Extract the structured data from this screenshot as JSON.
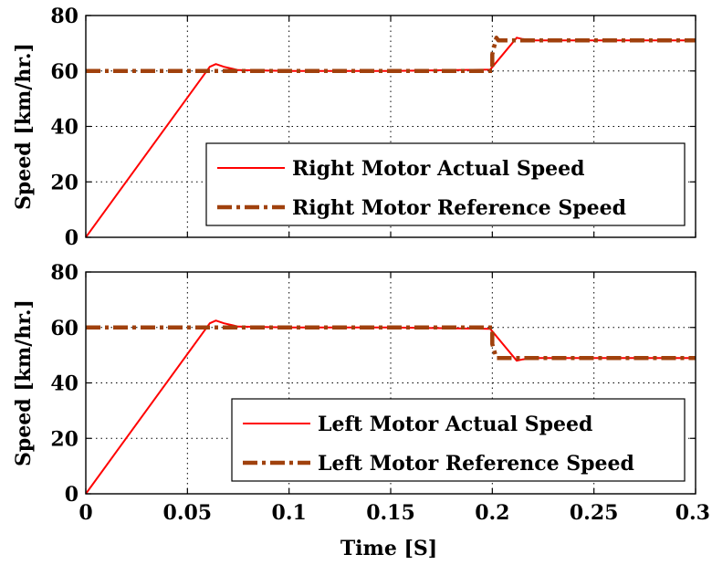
{
  "figure": {
    "xlabel": "Time [S]"
  },
  "colors": {
    "actual": "#ff0000",
    "reference": "#a0410d",
    "axis": "#000000",
    "grid": "#000000",
    "background": "#ffffff"
  },
  "chart_data": [
    {
      "type": "line",
      "xlabel": "",
      "ylabel": "Speed [km/hr.]",
      "xlim": [
        0,
        0.3
      ],
      "ylim": [
        0,
        80
      ],
      "xticks": [
        0,
        0.05,
        0.1,
        0.15,
        0.2,
        0.25,
        0.3
      ],
      "yticks": [
        0,
        20,
        40,
        60,
        80
      ],
      "xtick_labels": [
        "0",
        "0.05",
        "0.1",
        "0.15",
        "0.2",
        "0.25",
        "0.3"
      ],
      "ytick_labels": [
        "0",
        "20",
        "40",
        "60",
        "80"
      ],
      "show_xtick_labels": false,
      "grid": true,
      "legend_position": "bottom-right",
      "series": [
        {
          "name": "Right Motor Actual Speed",
          "style": "solid",
          "x": [
            0,
            0.061,
            0.064,
            0.068,
            0.075,
            0.1,
            0.15,
            0.199,
            0.212,
            0.215,
            0.22,
            0.25,
            0.3
          ],
          "y": [
            0,
            61.5,
            62.5,
            61.5,
            60.3,
            60.0,
            60.0,
            60.5,
            72.0,
            71.5,
            71.0,
            71.0,
            71.0
          ]
        },
        {
          "name": "Right Motor Reference Speed",
          "style": "dashdot",
          "x": [
            0,
            0.2,
            0.2,
            0.202,
            0.203,
            0.3
          ],
          "y": [
            60,
            60,
            66,
            72,
            71,
            71
          ]
        }
      ]
    },
    {
      "type": "line",
      "xlabel": "Time [S]",
      "ylabel": "Speed [km/hr.]",
      "xlim": [
        0,
        0.3
      ],
      "ylim": [
        0,
        80
      ],
      "xticks": [
        0,
        0.05,
        0.1,
        0.15,
        0.2,
        0.25,
        0.3
      ],
      "yticks": [
        0,
        20,
        40,
        60,
        80
      ],
      "xtick_labels": [
        "0",
        "0.05",
        "0.1",
        "0.15",
        "0.2",
        "0.25",
        "0.3"
      ],
      "ytick_labels": [
        "0",
        "20",
        "40",
        "60",
        "80"
      ],
      "show_xtick_labels": true,
      "grid": true,
      "legend_position": "bottom-right",
      "series": [
        {
          "name": "Left Motor Actual Speed",
          "style": "solid",
          "x": [
            0,
            0.061,
            0.064,
            0.068,
            0.075,
            0.1,
            0.15,
            0.199,
            0.212,
            0.215,
            0.22,
            0.25,
            0.3
          ],
          "y": [
            0,
            61.5,
            62.5,
            61.5,
            60.3,
            60.0,
            60.0,
            59.5,
            48.0,
            48.5,
            49.0,
            49.0,
            49.0
          ]
        },
        {
          "name": "Left Motor Reference Speed",
          "style": "dashdot",
          "x": [
            0,
            0.2,
            0.2,
            0.202,
            0.203,
            0.3
          ],
          "y": [
            60,
            60,
            54,
            49,
            49,
            49
          ]
        }
      ]
    }
  ]
}
